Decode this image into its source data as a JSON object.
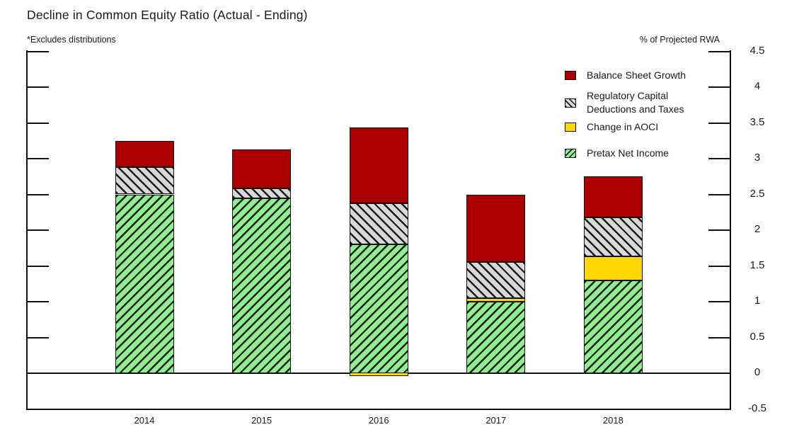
{
  "title": "Decline in Common Equity Ratio (Actual - Ending)",
  "note": "*Excludes distributions",
  "right_axis_title": "% of Projected RWA",
  "colors": {
    "balance_sheet_growth": "#AA0000",
    "regulatory_capital_fill": "#D8D8D8",
    "change_in_aoci": "#FFD600",
    "pretax_net_income_fill": "#90EE90",
    "hatch": "#1a1a1a",
    "axis": "#111111"
  },
  "legend": {
    "items": [
      {
        "label": "Balance Sheet Growth",
        "key": "balance_sheet_growth",
        "swatch": "solid-red"
      },
      {
        "label": "Regulatory Capital\n Deductions and Taxes",
        "key": "regulatory_capital",
        "swatch": "gray-hatch"
      },
      {
        "label": "Change in AOCI",
        "key": "change_in_aoci",
        "swatch": "solid-yellow"
      },
      {
        "label": "Pretax Net Income",
        "key": "pretax_net_income",
        "swatch": "green-hatch"
      }
    ]
  },
  "chart_data": {
    "type": "bar",
    "stacked": true,
    "title": "Decline in Common Equity Ratio (Actual - Ending)",
    "right_axis_title": "% of Projected RWA",
    "categories": [
      "2014",
      "2015",
      "2016",
      "2017",
      "2018"
    ],
    "series": [
      {
        "name": "Pretax Net Income",
        "key": "pretax_net_income",
        "values": [
          2.5,
          2.45,
          1.8,
          1.0,
          1.3
        ]
      },
      {
        "name": "Change in AOCI",
        "key": "change_in_aoci",
        "values": [
          0,
          0,
          -0.05,
          0.05,
          0.33
        ]
      },
      {
        "name": "Regulatory Capital Deductions and Taxes",
        "key": "regulatory_capital",
        "values": [
          0.38,
          0.13,
          0.58,
          0.5,
          0.55
        ]
      },
      {
        "name": "Balance Sheet Growth",
        "key": "balance_sheet_growth",
        "values": [
          0.37,
          0.55,
          1.06,
          0.95,
          0.57
        ]
      }
    ],
    "totals": [
      3.25,
      3.13,
      3.44,
      2.5,
      2.75
    ],
    "ylim": [
      -0.5,
      4.5
    ],
    "yticks": [
      4.5,
      4,
      3.5,
      3,
      2.5,
      2,
      1.5,
      1,
      0.5,
      0,
      -0.5
    ],
    "grid": false,
    "hatches": {
      "pretax_net_income": "/",
      "regulatory_capital": "\\"
    },
    "legend_position": "upper-right-inside"
  }
}
